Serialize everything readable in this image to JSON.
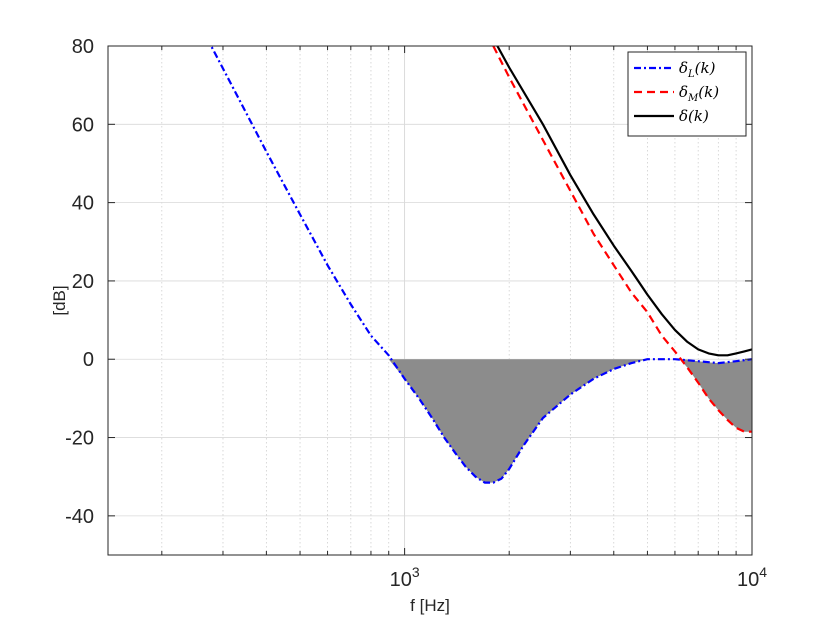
{
  "chart_data": {
    "type": "line",
    "xlabel": "f [Hz]",
    "ylabel": "[dB]",
    "x_scale": "log",
    "xlim": [
      140,
      10000
    ],
    "ylim": [
      -50,
      80
    ],
    "grid": true,
    "legend_position": "top-right",
    "x_ticks": [
      {
        "value": 1000,
        "base": "10",
        "exp": "3"
      },
      {
        "value": 10000,
        "base": "10",
        "exp": "4"
      }
    ],
    "y_ticks": [
      {
        "value": 80,
        "label": "80"
      },
      {
        "value": 60,
        "label": "60"
      },
      {
        "value": 40,
        "label": "40"
      },
      {
        "value": 20,
        "label": "20"
      },
      {
        "value": 0,
        "label": "0"
      },
      {
        "value": -20,
        "label": "-20"
      },
      {
        "value": -40,
        "label": "-40"
      }
    ],
    "series": [
      {
        "name": "δL(k)",
        "legend_main": "δ",
        "legend_sub": "L",
        "legend_arg": "(k)",
        "color": "#0000ff",
        "dash": "dashdot",
        "x": [
          270,
          320,
          400,
          500,
          600,
          700,
          800,
          900,
          1000,
          1100,
          1200,
          1300,
          1400,
          1500,
          1600,
          1700,
          1800,
          1900,
          2000,
          2200,
          2500,
          3000,
          3500,
          4000,
          4500,
          5000,
          6000,
          7000,
          8000,
          9000,
          10000
        ],
        "y": [
          82,
          69.5,
          53,
          37,
          24,
          14,
          6,
          1,
          -5,
          -10,
          -15,
          -20,
          -24,
          -27.5,
          -30,
          -31.5,
          -31.5,
          -30.5,
          -28,
          -22,
          -15,
          -9,
          -5,
          -2.5,
          -1,
          0,
          0,
          -0.5,
          -1,
          -0.5,
          0
        ]
      },
      {
        "name": "δM(k)",
        "legend_main": "δ",
        "legend_sub": "M",
        "legend_arg": "(k)",
        "color": "#ff0000",
        "dash": "dashed",
        "x": [
          1800,
          2000,
          2500,
          3000,
          3500,
          4000,
          4500,
          5000,
          5500,
          6000,
          6500,
          7000,
          7500,
          8000,
          8500,
          9000,
          9500,
          10000
        ],
        "y": [
          80,
          72,
          56,
          43,
          32,
          24,
          17,
          12,
          6,
          2,
          -2,
          -6,
          -10,
          -13,
          -15.5,
          -17.5,
          -18.5,
          -18.5
        ]
      },
      {
        "name": "δ(k)",
        "legend_main": "δ",
        "legend_sub": "",
        "legend_arg": "(k)",
        "color": "#000000",
        "dash": "solid",
        "x": [
          1850,
          2000,
          2500,
          3000,
          3500,
          4000,
          4500,
          5000,
          5500,
          6000,
          6500,
          7000,
          7500,
          8000,
          8500,
          9000,
          9500,
          10000
        ],
        "y": [
          80,
          74.5,
          60,
          47,
          37,
          29,
          22.5,
          16.5,
          11.5,
          7.5,
          4.5,
          2.5,
          1.5,
          1,
          1,
          1.5,
          2,
          2.5
        ]
      }
    ],
    "shaded_regions": [
      {
        "description": "area between curve and 0 dB",
        "color": "#8c8c8c",
        "x": [
          900,
          1000,
          1100,
          1200,
          1300,
          1400,
          1500,
          1600,
          1700,
          1800,
          1900,
          2000,
          2200,
          2500,
          3000,
          3500,
          4000,
          4500,
          5000,
          6000,
          6200
        ],
        "y": [
          0,
          -5,
          -10,
          -15,
          -20,
          -24,
          -27.5,
          -30,
          -31.5,
          -31.5,
          -30.5,
          -28,
          -22,
          -15,
          -9,
          -5,
          -2.5,
          -1,
          0,
          0,
          0
        ]
      },
      {
        "description": "area between red and blue curves",
        "color": "#8c8c8c",
        "x": [
          6200,
          6500,
          7000,
          7500,
          8000,
          8500,
          9000,
          9500,
          10000
        ],
        "y_upper": [
          0,
          -0.1,
          -0.5,
          -0.8,
          -1,
          -0.8,
          -0.5,
          -0.2,
          0
        ],
        "y_lower": [
          0,
          -2,
          -6,
          -10,
          -13,
          -15.5,
          -17.5,
          -18.5,
          -18.5
        ]
      }
    ]
  }
}
